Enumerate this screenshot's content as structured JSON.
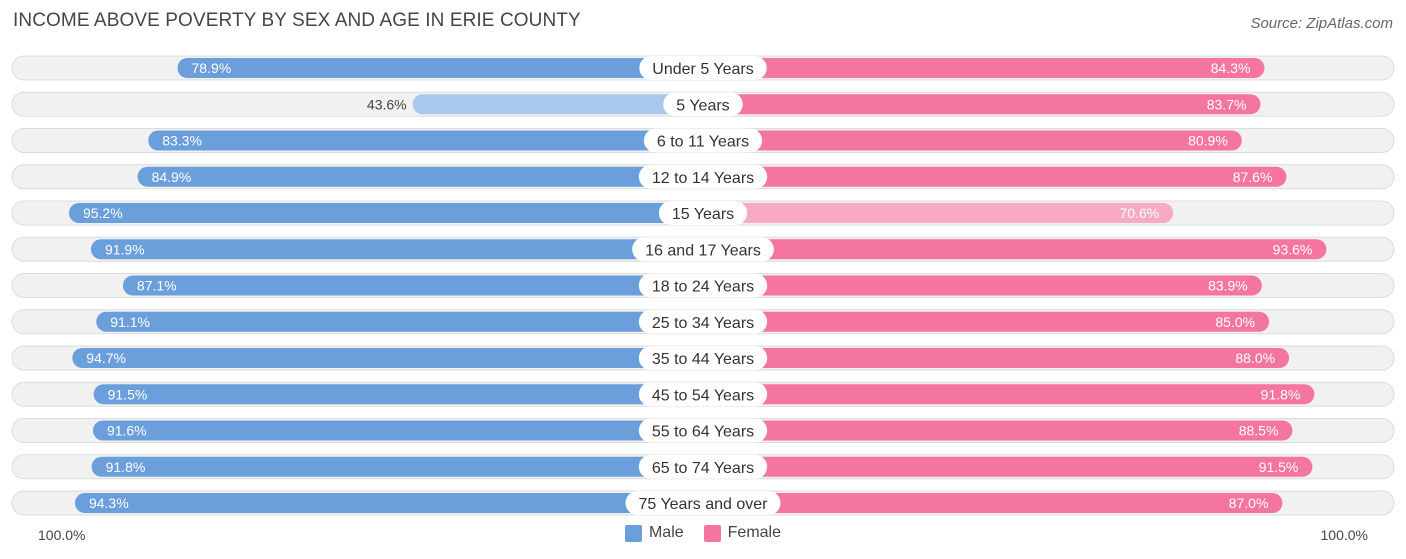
{
  "header": {
    "title": "INCOME ABOVE POVERTY BY SEX AND AGE IN ERIE COUNTY",
    "source": "Source: ZipAtlas.com"
  },
  "colors": {
    "male_strong": "#6a9fdb",
    "male_light": "#aac8ee",
    "female_strong": "#f4769f",
    "female_light": "#f8a9c3",
    "track": "#f1f1f1",
    "track_border": "#dcdcdc"
  },
  "axis": {
    "left_label": "100.0%",
    "right_label": "100.0%"
  },
  "legend": {
    "male_label": "Male",
    "female_label": "Female"
  },
  "chart_data": {
    "type": "bar",
    "orientation": "horizontal-diverging",
    "title": "INCOME ABOVE POVERTY BY SEX AND AGE IN ERIE COUNTY",
    "xlim": [
      0,
      100
    ],
    "categories": [
      "Under 5 Years",
      "5 Years",
      "6 to 11 Years",
      "12 to 14 Years",
      "15 Years",
      "16 and 17 Years",
      "18 to 24 Years",
      "25 to 34 Years",
      "35 to 44 Years",
      "45 to 54 Years",
      "55 to 64 Years",
      "65 to 74 Years",
      "75 Years and over"
    ],
    "series": [
      {
        "name": "Male",
        "values": [
          78.9,
          43.6,
          83.3,
          84.9,
          95.2,
          91.9,
          87.1,
          91.1,
          94.7,
          91.5,
          91.6,
          91.8,
          94.3
        ],
        "labels": [
          "78.9%",
          "43.6%",
          "83.3%",
          "84.9%",
          "95.2%",
          "91.9%",
          "87.1%",
          "91.1%",
          "94.7%",
          "91.5%",
          "91.6%",
          "91.8%",
          "94.3%"
        ]
      },
      {
        "name": "Female",
        "values": [
          84.3,
          83.7,
          80.9,
          87.6,
          70.6,
          93.6,
          83.9,
          85.0,
          88.0,
          91.8,
          88.5,
          91.5,
          87.0
        ],
        "labels": [
          "84.3%",
          "83.7%",
          "80.9%",
          "87.6%",
          "70.6%",
          "93.6%",
          "83.9%",
          "85.0%",
          "88.0%",
          "91.8%",
          "88.5%",
          "91.5%",
          "87.0%"
        ]
      }
    ]
  }
}
